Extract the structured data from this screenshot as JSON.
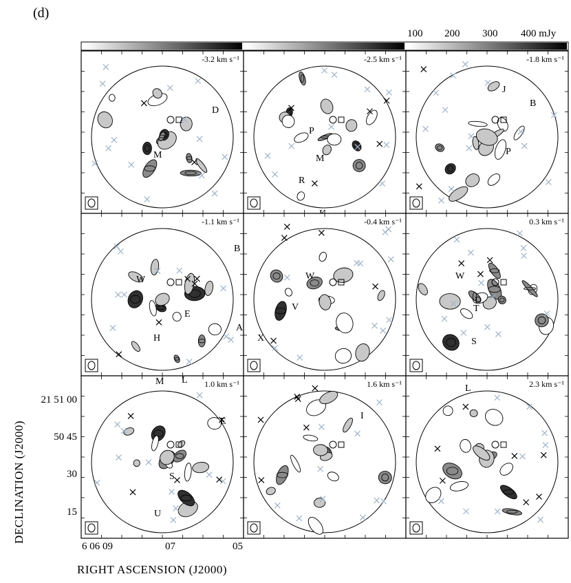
{
  "figure_label": "(d)",
  "colorbar": {
    "ticks": [
      "100",
      "200",
      "300",
      "400 mJy"
    ]
  },
  "axes": {
    "ylabel": "DECLINATION (J2000)",
    "xlabel": "RIGHT ASCENSION (J2000)",
    "yticks": [
      "21 51 00",
      "50 45",
      "30",
      "15"
    ],
    "xticks": [
      "6 06 09",
      "07",
      "05"
    ]
  },
  "panels": [
    {
      "velocity": "-3.2 km s⁻¹",
      "labels": [
        "D",
        "M"
      ]
    },
    {
      "velocity": "-2.5 km s⁻¹",
      "labels": [
        "P",
        "M",
        "R",
        "K"
      ]
    },
    {
      "velocity": "-1.8 km s⁻¹",
      "labels": [
        "J",
        "B",
        "P"
      ]
    },
    {
      "velocity": "-1.1 km s⁻¹",
      "labels": [
        "B",
        "W",
        "E",
        "A",
        "H"
      ]
    },
    {
      "velocity": "-0.4 km s⁻¹",
      "labels": [
        "W",
        "V",
        "X"
      ]
    },
    {
      "velocity": "0.3 km s⁻¹",
      "labels": [
        "W",
        "D",
        "T",
        "S"
      ]
    },
    {
      "velocity": "1.0 km s⁻¹",
      "labels": [
        "M",
        "L",
        "E",
        "S",
        "U"
      ]
    },
    {
      "velocity": "1.6 km s⁻¹",
      "labels": [
        "I"
      ]
    },
    {
      "velocity": "2.3 km s⁻¹",
      "labels": [
        "L"
      ]
    }
  ],
  "colors": {
    "cross": "#9fb3c8",
    "fill_light": "#c8c8c8",
    "fill_mid": "#8a8a8a",
    "fill_dark": "#303030"
  }
}
